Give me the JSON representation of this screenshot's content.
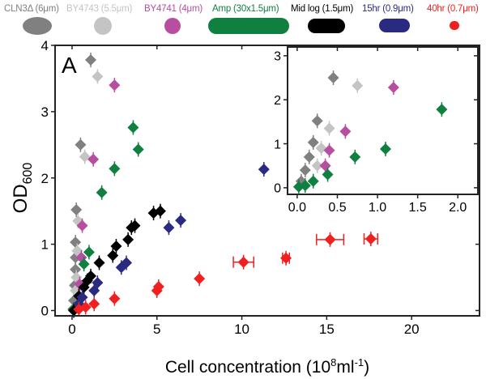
{
  "chart_data": {
    "type": "scatter",
    "panel_label": "A",
    "xlabel": "Cell concentration (10",
    "xlabel_sup": "8",
    "xlabel_unit": "ml",
    "xlabel_unit_sup": "-1",
    "xlabel_close": ")",
    "ylabel": "OD",
    "ylabel_sub": "600",
    "xlim": [
      -1,
      24
    ],
    "ylim": [
      -0.08,
      4
    ],
    "xticks": [
      "0",
      "5",
      "10",
      "15",
      "20"
    ],
    "yticks": [
      "0",
      "1",
      "2",
      "3",
      "4"
    ],
    "grid": false,
    "legend_position": "top (above plot)",
    "series": [
      {
        "name": "CLN3Δ (6μm)",
        "color": "#808080",
        "shape": "ellipse",
        "points": [
          [
            1.1,
            3.78
          ],
          [
            0.5,
            2.5
          ],
          [
            0.25,
            1.52
          ],
          [
            0.2,
            1.03
          ],
          [
            0.2,
            0.8
          ],
          [
            0.2,
            0.62
          ],
          [
            0.15,
            0.38
          ],
          [
            0.1,
            0.15
          ],
          [
            0.05,
            0.02
          ]
        ]
      },
      {
        "name": "BY4743 (5.5μm)",
        "color": "#c4c4c4",
        "shape": "ellipse",
        "points": [
          [
            1.5,
            3.53
          ],
          [
            0.75,
            2.32
          ],
          [
            0.35,
            1.35
          ],
          [
            0.3,
            0.9
          ],
          [
            0.25,
            0.5
          ],
          [
            0.2,
            0.3
          ]
        ]
      },
      {
        "name": "BY4741 (4μm)",
        "color": "#b84ea0",
        "shape": "circle",
        "points": [
          [
            2.5,
            3.4
          ],
          [
            1.25,
            2.28
          ],
          [
            0.6,
            1.28
          ],
          [
            0.55,
            0.8
          ],
          [
            0.45,
            0.4
          ]
        ]
      },
      {
        "name": "Amp (30x1.5μm)",
        "color": "#108040",
        "shape": "long-rod",
        "points": [
          [
            3.6,
            2.76
          ],
          [
            3.9,
            2.43
          ],
          [
            2.5,
            2.14
          ],
          [
            1.75,
            1.78
          ],
          [
            1.0,
            0.88
          ],
          [
            0.7,
            0.7
          ],
          [
            0.1,
            0.02
          ]
        ]
      },
      {
        "name": "Mid log (1.5μm)",
        "color": "#000000",
        "shape": "rod",
        "points": [
          [
            5.2,
            1.5
          ],
          [
            4.8,
            1.47
          ],
          [
            3.7,
            1.28
          ],
          [
            3.5,
            1.25
          ],
          [
            3.3,
            1.07
          ],
          [
            2.6,
            0.97
          ],
          [
            2.4,
            0.83
          ],
          [
            1.6,
            0.72
          ],
          [
            1.1,
            0.52
          ],
          [
            0.9,
            0.45
          ],
          [
            0.7,
            0.35
          ],
          [
            0.4,
            0.22
          ],
          [
            0.1,
            0.0
          ]
        ]
      },
      {
        "name": "15hr (0.9μm)",
        "color": "#2a2a80",
        "shape": "rod",
        "points": [
          [
            11.3,
            2.13
          ],
          [
            6.4,
            1.36
          ],
          [
            5.7,
            1.25
          ],
          [
            3.2,
            0.72
          ],
          [
            2.9,
            0.65
          ],
          [
            1.5,
            0.42
          ],
          [
            1.3,
            0.3
          ],
          [
            0.6,
            0.2
          ],
          [
            0.4,
            0.1
          ]
        ]
      },
      {
        "name": "40hr (0.7μm)",
        "color": "#f02020",
        "shape": "dot",
        "points": [
          [
            17.6,
            1.08,
            0.4
          ],
          [
            15.2,
            1.07,
            0.8
          ],
          [
            12.6,
            0.79,
            0.2
          ],
          [
            10.1,
            0.73,
            0.6
          ],
          [
            7.5,
            0.48,
            0
          ],
          [
            5.1,
            0.36,
            0
          ],
          [
            5.0,
            0.3,
            0
          ],
          [
            2.5,
            0.18,
            0
          ],
          [
            1.3,
            0.1,
            0
          ],
          [
            0.8,
            0.05,
            0
          ],
          [
            0.4,
            0.02,
            0
          ]
        ]
      }
    ],
    "inset": {
      "xlim": [
        -0.12,
        2.25
      ],
      "ylim": [
        -0.15,
        3.2
      ],
      "xticks": [
        "0.0",
        "0.5",
        "1.0",
        "1.5",
        "2.0"
      ],
      "yticks": [
        "0",
        "1",
        "2",
        "3"
      ],
      "series": [
        {
          "color": "#808080",
          "points": [
            [
              0.45,
              2.5
            ],
            [
              0.25,
              1.52
            ],
            [
              0.2,
              1.03
            ],
            [
              0.15,
              0.7
            ],
            [
              0.1,
              0.4
            ],
            [
              0.05,
              0.15
            ]
          ]
        },
        {
          "color": "#c4c4c4",
          "points": [
            [
              0.75,
              2.32
            ],
            [
              0.4,
              1.35
            ],
            [
              0.3,
              0.9
            ],
            [
              0.25,
              0.5
            ]
          ]
        },
        {
          "color": "#b84ea0",
          "points": [
            [
              1.2,
              2.28
            ],
            [
              0.6,
              1.28
            ],
            [
              0.4,
              0.85
            ],
            [
              0.35,
              0.5
            ]
          ]
        },
        {
          "color": "#108040",
          "points": [
            [
              1.8,
              1.78
            ],
            [
              1.1,
              0.88
            ],
            [
              0.72,
              0.7
            ],
            [
              0.38,
              0.3
            ],
            [
              0.2,
              0.15
            ],
            [
              0.1,
              0.05
            ],
            [
              0.02,
              0.02
            ]
          ]
        }
      ]
    }
  }
}
